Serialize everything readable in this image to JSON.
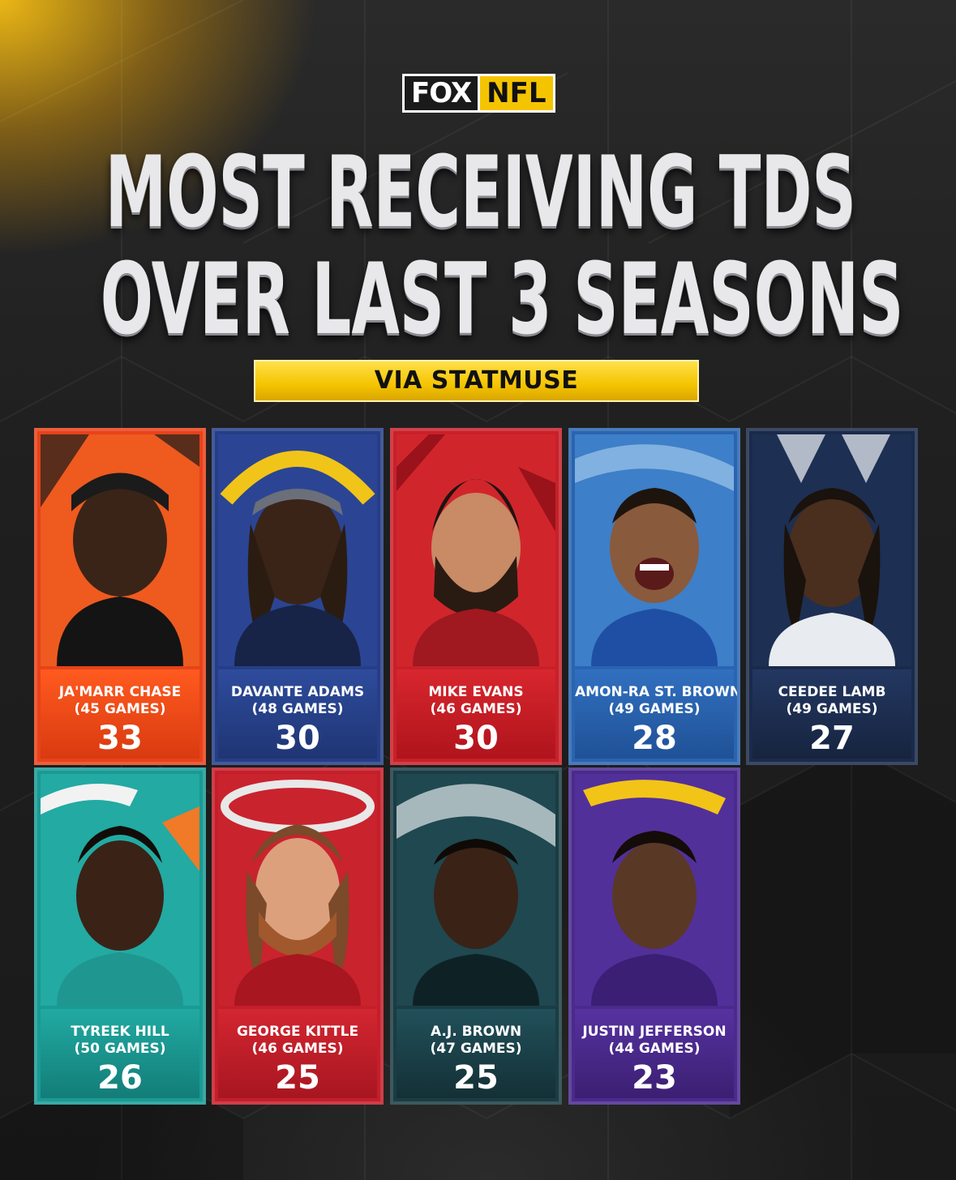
{
  "logo": {
    "fox": "FOX",
    "nfl": "NFL"
  },
  "title": {
    "line1": "MOST RECEIVING TDS",
    "line2": "OVER LAST 3 SEASONS"
  },
  "source": "VIA STATMUSE",
  "colors": {
    "accent": "#f5c400",
    "background": "#1f1f1f"
  },
  "players": [
    {
      "name": "JA'MARR CHASE",
      "games": "(45 GAMES)",
      "tds": "33",
      "color": "#e8421a"
    },
    {
      "name": "DAVANTE ADAMS",
      "games": "(48 GAMES)",
      "tds": "30",
      "color": "#263e86"
    },
    {
      "name": "MIKE EVANS",
      "games": "(46 GAMES)",
      "tds": "30",
      "color": "#c8202a"
    },
    {
      "name": "AMON-RA ST. BROWN",
      "games": "(49 GAMES)",
      "tds": "28",
      "color": "#2a64b0"
    },
    {
      "name": "CEEDEE LAMB",
      "games": "(49 GAMES)",
      "tds": "27",
      "color": "#1a2a4a"
    },
    {
      "name": "TYREEK HILL",
      "games": "(50 GAMES)",
      "tds": "26",
      "color": "#1a9a94"
    },
    {
      "name": "GEORGE KITTLE",
      "games": "(46 GAMES)",
      "tds": "25",
      "color": "#c41e2a"
    },
    {
      "name": "A.J. BROWN",
      "games": "(47 GAMES)",
      "tds": "25",
      "color": "#1b3c44"
    },
    {
      "name": "JUSTIN JEFFERSON",
      "games": "(44 GAMES)",
      "tds": "23",
      "color": "#4a2a8c"
    }
  ]
}
